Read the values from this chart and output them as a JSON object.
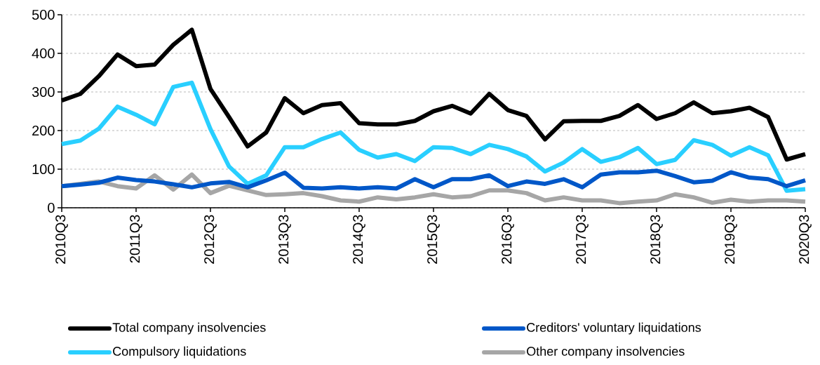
{
  "chart_data": {
    "type": "line",
    "categories": [
      "2010Q3",
      null,
      null,
      null,
      "2011Q3",
      null,
      null,
      null,
      "2012Q3",
      null,
      null,
      null,
      "2013Q3",
      null,
      null,
      null,
      "2014Q3",
      null,
      null,
      null,
      "2015Q3",
      null,
      null,
      null,
      "2016Q3",
      null,
      null,
      null,
      "2017Q3",
      null,
      null,
      null,
      "2018Q3",
      null,
      null,
      null,
      "2019Q3",
      null,
      null,
      null,
      "2020Q3"
    ],
    "ylim": [
      0,
      500
    ],
    "yticks": [
      0,
      100,
      200,
      300,
      400,
      500
    ],
    "grid": "y",
    "legend": "bottom",
    "marker": "none",
    "line_style": "solid",
    "series": [
      {
        "name": "Total company insolvencies",
        "color": "#000000",
        "values": [
          278,
          295,
          341,
          397,
          367,
          371,
          422,
          461,
          308,
          235,
          159,
          195,
          284,
          245,
          266,
          271,
          219,
          216,
          216,
          225,
          250,
          264,
          244,
          295,
          253,
          238,
          177,
          224,
          225,
          225,
          238,
          266,
          230,
          245,
          273,
          245,
          250,
          259,
          235,
          125,
          139
        ]
      },
      {
        "name": "Creditors' voluntary liquidations",
        "color": "#0057c8",
        "values": [
          56,
          60,
          65,
          78,
          72,
          68,
          61,
          53,
          63,
          67,
          53,
          71,
          91,
          52,
          50,
          53,
          50,
          53,
          50,
          74,
          53,
          74,
          74,
          84,
          56,
          68,
          62,
          74,
          53,
          86,
          92,
          92,
          96,
          82,
          66,
          70,
          92,
          78,
          74,
          56,
          71
        ]
      },
      {
        "name": "Compulsory liquidations",
        "color": "#29cfff",
        "values": [
          165,
          174,
          205,
          262,
          241,
          216,
          313,
          324,
          204,
          107,
          62,
          84,
          157,
          157,
          178,
          195,
          150,
          130,
          139,
          121,
          157,
          155,
          139,
          163,
          152,
          133,
          94,
          117,
          152,
          119,
          131,
          155,
          113,
          124,
          175,
          163,
          135,
          157,
          136,
          44,
          48
        ]
      },
      {
        "name": "Other company insolvencies",
        "color": "#a6a6a6",
        "values": [
          56,
          62,
          68,
          56,
          50,
          84,
          47,
          86,
          38,
          57,
          45,
          33,
          35,
          38,
          30,
          19,
          16,
          27,
          22,
          27,
          35,
          27,
          30,
          45,
          45,
          38,
          19,
          27,
          19,
          19,
          12,
          16,
          19,
          35,
          27,
          13,
          21,
          16,
          19,
          19,
          16
        ]
      }
    ]
  }
}
